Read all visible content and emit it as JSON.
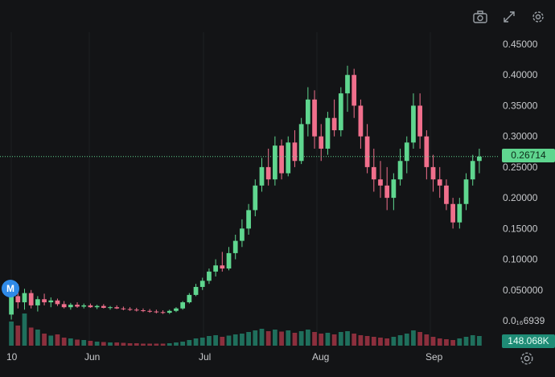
{
  "toolbar": {
    "snapshot_icon": "camera-icon",
    "fullscreen_icon": "expand-icon",
    "settings_icon": "gear-icon"
  },
  "price_axis": {
    "ticks": [
      "0.45000",
      "0.40000",
      "0.35000",
      "0.30000",
      "0.25000",
      "0.20000",
      "0.15000",
      "0.10000",
      "0.050000",
      "0.0₁₆6939"
    ],
    "last_price": "0.26714",
    "volume_label": "148.068K"
  },
  "time_axis": {
    "ticks": [
      "10",
      "Jun",
      "Jul",
      "Aug",
      "Sep"
    ]
  },
  "marker": {
    "label": "M"
  },
  "colors": {
    "background": "#131416",
    "up": "#5fd68f",
    "down": "#f06f8c",
    "volume_up": "#1f6f5c",
    "volume_down": "#8c2f3d",
    "grid": "#1e2023"
  },
  "chart_data": {
    "type": "candlestick",
    "ylim": [
      0,
      0.45
    ],
    "last_price": 0.26714,
    "series": [
      {
        "name": "price",
        "values": [
          [
            0.01,
            0.045,
            0.002,
            0.04
          ],
          [
            0.04,
            0.06,
            0.02,
            0.03
          ],
          [
            0.03,
            0.052,
            0.018,
            0.045
          ],
          [
            0.045,
            0.05,
            0.02,
            0.025
          ],
          [
            0.025,
            0.04,
            0.015,
            0.035
          ],
          [
            0.035,
            0.044,
            0.025,
            0.03
          ],
          [
            0.03,
            0.038,
            0.022,
            0.033
          ],
          [
            0.033,
            0.036,
            0.024,
            0.027
          ],
          [
            0.027,
            0.032,
            0.02,
            0.022
          ],
          [
            0.022,
            0.029,
            0.018,
            0.026
          ],
          [
            0.026,
            0.03,
            0.021,
            0.023
          ],
          [
            0.023,
            0.028,
            0.02,
            0.025
          ],
          [
            0.025,
            0.028,
            0.021,
            0.022
          ],
          [
            0.022,
            0.026,
            0.019,
            0.024
          ],
          [
            0.024,
            0.027,
            0.02,
            0.021
          ],
          [
            0.021,
            0.024,
            0.018,
            0.022
          ],
          [
            0.022,
            0.025,
            0.019,
            0.02
          ],
          [
            0.02,
            0.023,
            0.017,
            0.019
          ],
          [
            0.019,
            0.022,
            0.016,
            0.018
          ],
          [
            0.018,
            0.021,
            0.015,
            0.017
          ],
          [
            0.017,
            0.02,
            0.014,
            0.016
          ],
          [
            0.016,
            0.019,
            0.013,
            0.015
          ],
          [
            0.015,
            0.018,
            0.012,
            0.014
          ],
          [
            0.014,
            0.017,
            0.011,
            0.013
          ],
          [
            0.013,
            0.018,
            0.011,
            0.016
          ],
          [
            0.016,
            0.022,
            0.014,
            0.02
          ],
          [
            0.02,
            0.032,
            0.018,
            0.03
          ],
          [
            0.03,
            0.045,
            0.028,
            0.042
          ],
          [
            0.042,
            0.06,
            0.04,
            0.055
          ],
          [
            0.055,
            0.07,
            0.05,
            0.065
          ],
          [
            0.065,
            0.085,
            0.06,
            0.08
          ],
          [
            0.08,
            0.1,
            0.072,
            0.09
          ],
          [
            0.09,
            0.112,
            0.08,
            0.085
          ],
          [
            0.085,
            0.12,
            0.082,
            0.11
          ],
          [
            0.11,
            0.14,
            0.1,
            0.13
          ],
          [
            0.13,
            0.165,
            0.12,
            0.15
          ],
          [
            0.15,
            0.19,
            0.14,
            0.18
          ],
          [
            0.18,
            0.23,
            0.17,
            0.22
          ],
          [
            0.22,
            0.265,
            0.21,
            0.25
          ],
          [
            0.25,
            0.28,
            0.22,
            0.23
          ],
          [
            0.23,
            0.3,
            0.22,
            0.285
          ],
          [
            0.285,
            0.295,
            0.23,
            0.24
          ],
          [
            0.24,
            0.3,
            0.235,
            0.29
          ],
          [
            0.29,
            0.31,
            0.25,
            0.26
          ],
          [
            0.26,
            0.33,
            0.255,
            0.32
          ],
          [
            0.32,
            0.38,
            0.3,
            0.36
          ],
          [
            0.36,
            0.375,
            0.28,
            0.3
          ],
          [
            0.3,
            0.32,
            0.26,
            0.28
          ],
          [
            0.28,
            0.34,
            0.27,
            0.33
          ],
          [
            0.33,
            0.36,
            0.3,
            0.31
          ],
          [
            0.31,
            0.38,
            0.3,
            0.37
          ],
          [
            0.37,
            0.415,
            0.34,
            0.4
          ],
          [
            0.4,
            0.41,
            0.33,
            0.35
          ],
          [
            0.35,
            0.36,
            0.28,
            0.3
          ],
          [
            0.3,
            0.32,
            0.24,
            0.25
          ],
          [
            0.25,
            0.28,
            0.21,
            0.23
          ],
          [
            0.23,
            0.26,
            0.2,
            0.22
          ],
          [
            0.22,
            0.25,
            0.18,
            0.2
          ],
          [
            0.2,
            0.24,
            0.18,
            0.23
          ],
          [
            0.23,
            0.28,
            0.22,
            0.26
          ],
          [
            0.26,
            0.3,
            0.24,
            0.29
          ],
          [
            0.29,
            0.37,
            0.28,
            0.35
          ],
          [
            0.35,
            0.37,
            0.28,
            0.3
          ],
          [
            0.3,
            0.31,
            0.23,
            0.25
          ],
          [
            0.25,
            0.27,
            0.21,
            0.23
          ],
          [
            0.23,
            0.25,
            0.2,
            0.22
          ],
          [
            0.22,
            0.23,
            0.18,
            0.19
          ],
          [
            0.19,
            0.2,
            0.15,
            0.16
          ],
          [
            0.16,
            0.2,
            0.15,
            0.19
          ],
          [
            0.19,
            0.24,
            0.18,
            0.23
          ],
          [
            0.23,
            0.27,
            0.22,
            0.26
          ],
          [
            0.26,
            0.28,
            0.24,
            0.267
          ]
        ]
      },
      {
        "name": "volume",
        "values": [
          60,
          50,
          80,
          45,
          40,
          30,
          25,
          28,
          20,
          18,
          15,
          14,
          12,
          10,
          9,
          8,
          8,
          7,
          6,
          6,
          5,
          5,
          5,
          5,
          6,
          8,
          10,
          14,
          18,
          20,
          24,
          26,
          22,
          25,
          28,
          30,
          34,
          38,
          42,
          36,
          40,
          35,
          38,
          32,
          36,
          40,
          34,
          30,
          32,
          28,
          34,
          36,
          30,
          26,
          24,
          22,
          20,
          18,
          22,
          26,
          30,
          38,
          34,
          28,
          22,
          18,
          16,
          14,
          18,
          22,
          26,
          24
        ]
      }
    ]
  }
}
